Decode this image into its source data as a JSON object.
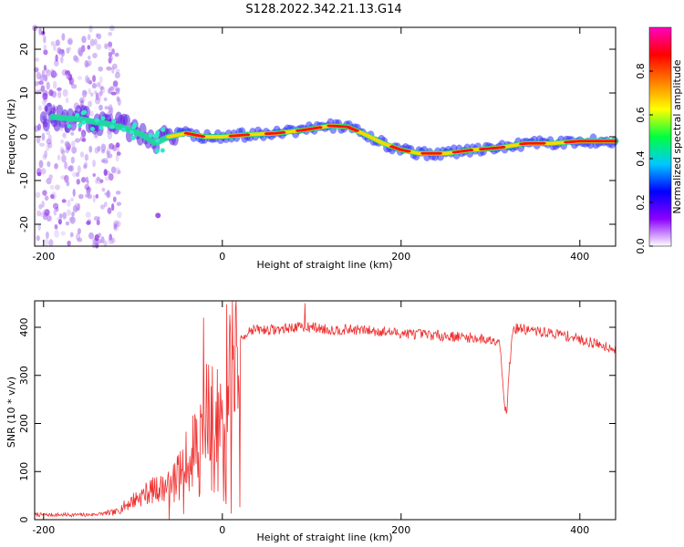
{
  "title": "S128.2022.342.21.13.G14",
  "chart_data": [
    {
      "type": "heatmap",
      "title": "S128.2022.342.21.13.G14",
      "xlabel": "Height of straight line (km)",
      "ylabel": "Frequency (Hz)",
      "xlim": [
        -210,
        440
      ],
      "ylim": [
        -25,
        25
      ],
      "xticks": [
        -200,
        0,
        200,
        400
      ],
      "yticks": [
        -20,
        -10,
        0,
        10,
        20
      ],
      "colorbar": {
        "label": "Normalized spectral amplitude",
        "range": [
          0,
          1
        ],
        "ticks": [
          "0.0",
          "0.2",
          "0.4",
          "0.6",
          "0.8"
        ],
        "colors": [
          "#ffffff",
          "#8b00ff",
          "#0000ff",
          "#00c8ff",
          "#00ff40",
          "#ffff00",
          "#ff8000",
          "#ff0000",
          "#ff00c0"
        ]
      },
      "ridge": {
        "x": [
          -190,
          -160,
          -130,
          -110,
          -90,
          -75,
          -60,
          -40,
          -20,
          0,
          30,
          60,
          90,
          120,
          140,
          160,
          180,
          200,
          220,
          250,
          280,
          310,
          340,
          370,
          400,
          440
        ],
        "y": [
          4.5,
          4.0,
          3.0,
          2.0,
          0.5,
          -1.5,
          0.0,
          0.8,
          0.0,
          0.0,
          0.5,
          0.8,
          1.5,
          2.5,
          2.3,
          0.5,
          -1.5,
          -3.0,
          -3.8,
          -3.8,
          -3.0,
          -2.5,
          -1.5,
          -1.5,
          -1.0,
          -1.0
        ]
      }
    },
    {
      "type": "line",
      "xlabel": "Height of straight line (km)",
      "ylabel": "SNR (10 * v/v)",
      "xlim": [
        -210,
        440
      ],
      "ylim": [
        0,
        455
      ],
      "xticks": [
        -200,
        0,
        200,
        400
      ],
      "yticks": [
        0,
        100,
        200,
        300,
        400
      ],
      "color": "#f03030",
      "series": [
        {
          "x": [
            -210,
            -150,
            -120,
            -100,
            -80,
            -60,
            -40,
            -30,
            -20,
            -10,
            0,
            10,
            20,
            30,
            40,
            60,
            80,
            100,
            120,
            150,
            200,
            250,
            280,
            300,
            310,
            315,
            318,
            320,
            325,
            330,
            350,
            380,
            400,
            420,
            440
          ],
          "y": [
            10,
            10,
            15,
            40,
            60,
            70,
            130,
            170,
            210,
            280,
            310,
            330,
            370,
            395,
            395,
            395,
            400,
            400,
            395,
            395,
            388,
            382,
            378,
            373,
            375,
            260,
            210,
            290,
            395,
            398,
            392,
            385,
            375,
            365,
            355
          ]
        }
      ]
    }
  ]
}
